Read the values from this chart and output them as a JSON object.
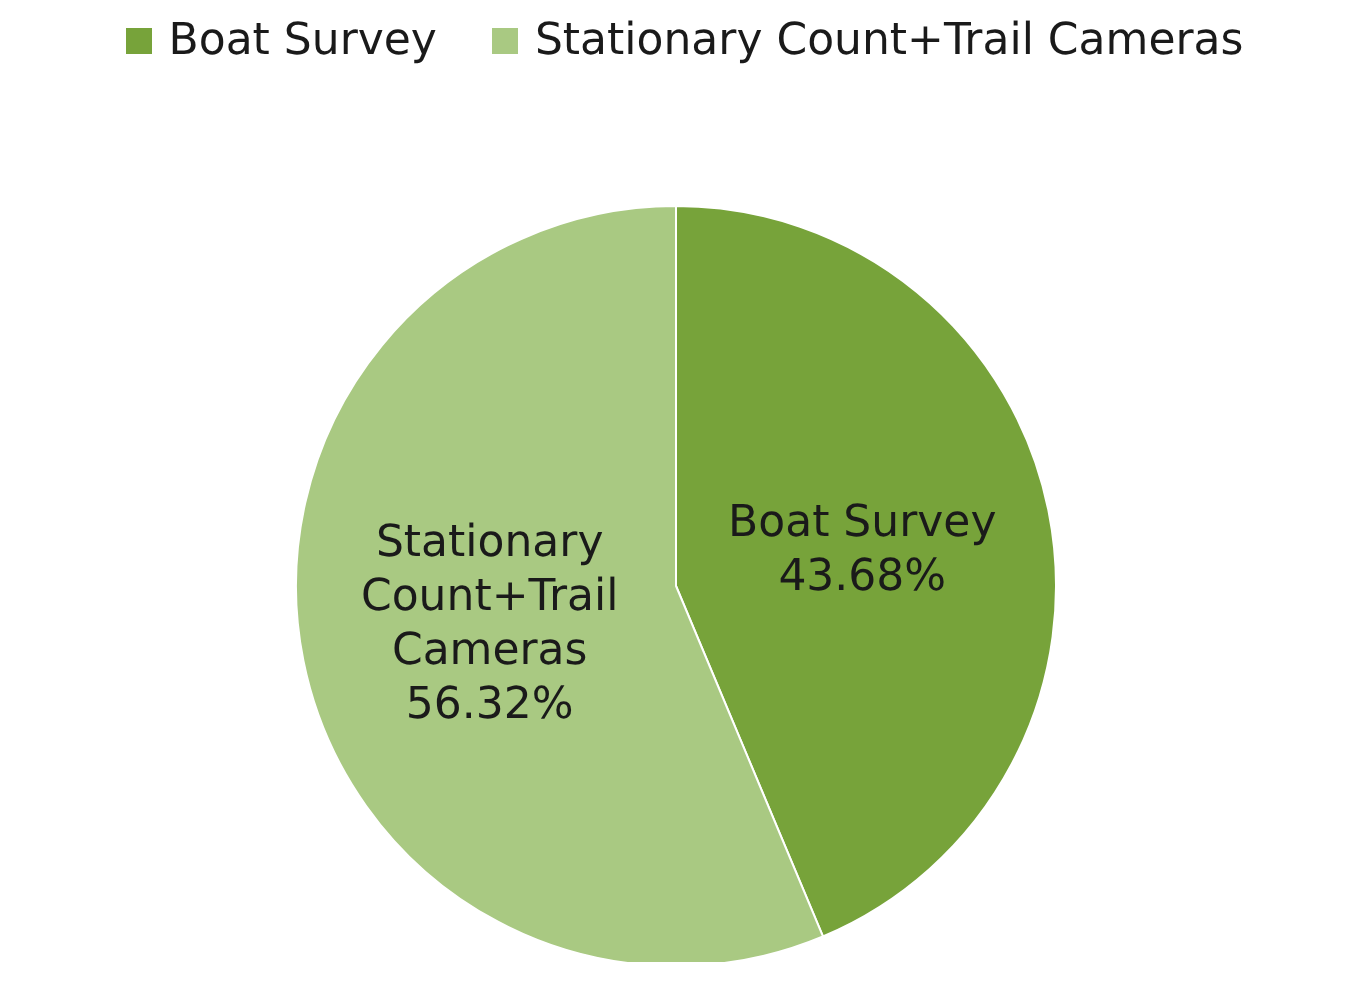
{
  "chart_data": {
    "type": "pie",
    "categories": [
      "Boat Survey",
      "Stationary Count+Trail Cameras"
    ],
    "values": [
      43.68,
      56.32
    ],
    "colors": [
      "#77a33a",
      "#a9c982"
    ],
    "value_labels": [
      "43.68%",
      "56.32%"
    ],
    "legend": "top"
  }
}
